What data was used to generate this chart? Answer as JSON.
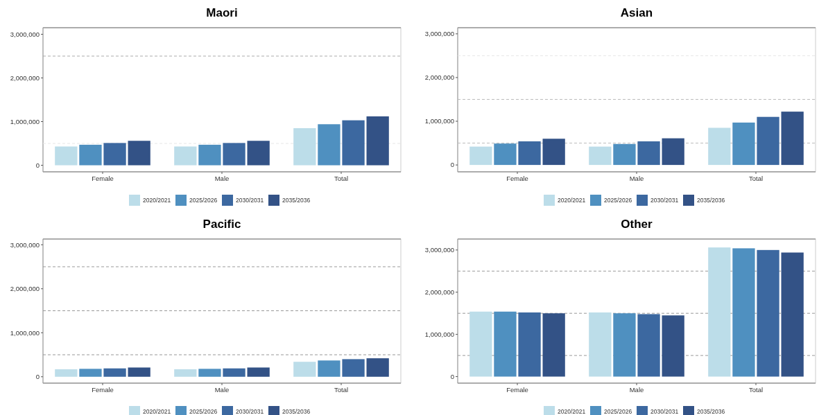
{
  "chart_data": [
    {
      "type": "bar",
      "title": "Maori",
      "categories": [
        "Female",
        "Male",
        "Total"
      ],
      "ylim": [
        -150000,
        3150000
      ],
      "yticks": [
        {
          "value": 0,
          "label": "0"
        },
        {
          "value": 1000000,
          "label": "1,000,000"
        },
        {
          "value": 2000000,
          "label": "2,000,000"
        },
        {
          "value": 3000000,
          "label": "3,000,000"
        }
      ],
      "legend": "bottom",
      "ref_lines": [
        {
          "axis": "y",
          "value": 500000,
          "color": "#e6e6e6",
          "line_style": "dashed"
        },
        {
          "axis": "y",
          "value": 2500000,
          "color": "#aaaaaa",
          "line_style": "dashed"
        }
      ],
      "series": [
        {
          "name": "2020/2021",
          "color": "#bcdde9",
          "values": [
            430000,
            430000,
            850000
          ]
        },
        {
          "name": "2025/2026",
          "color": "#4f90c0",
          "values": [
            470000,
            470000,
            940000
          ]
        },
        {
          "name": "2030/2031",
          "color": "#3c68a0",
          "values": [
            510000,
            510000,
            1030000
          ]
        },
        {
          "name": "2035/2036",
          "color": "#335286",
          "values": [
            560000,
            560000,
            1120000
          ]
        }
      ]
    },
    {
      "type": "bar",
      "title": "Asian",
      "categories": [
        "Female",
        "Male",
        "Total"
      ],
      "ylim": [
        -157000,
        3140000
      ],
      "yticks": [
        {
          "value": 0,
          "label": "0"
        },
        {
          "value": 1000000,
          "label": "1,000,000"
        },
        {
          "value": 2000000,
          "label": "2,000,000"
        },
        {
          "value": 3000000,
          "label": "3,000,000"
        }
      ],
      "legend": "bottom",
      "ref_lines": [
        {
          "axis": "y",
          "value": 500000,
          "color": "#bbbbbb",
          "line_style": "dashed"
        },
        {
          "axis": "y",
          "value": 1500000,
          "color": "#bbbbbb",
          "line_style": "dashed"
        },
        {
          "axis": "y",
          "value": 2500000,
          "color": "#e6e6e6",
          "line_style": "dashed"
        }
      ],
      "series": [
        {
          "name": "2020/2021",
          "color": "#bcdde9",
          "values": [
            420000,
            420000,
            850000
          ]
        },
        {
          "name": "2025/2026",
          "color": "#4f90c0",
          "values": [
            490000,
            480000,
            970000
          ]
        },
        {
          "name": "2030/2031",
          "color": "#3c68a0",
          "values": [
            540000,
            540000,
            1100000
          ]
        },
        {
          "name": "2035/2036",
          "color": "#335286",
          "values": [
            600000,
            610000,
            1220000
          ]
        }
      ]
    },
    {
      "type": "bar",
      "title": "Pacific",
      "categories": [
        "Female",
        "Male",
        "Total"
      ],
      "ylim": [
        -145000,
        3130000
      ],
      "yticks": [
        {
          "value": 0,
          "label": "0"
        },
        {
          "value": 1000000,
          "label": "1,000,000"
        },
        {
          "value": 2000000,
          "label": "2,000,000"
        },
        {
          "value": 3000000,
          "label": "3,000,000"
        }
      ],
      "legend": "bottom",
      "ref_lines": [
        {
          "axis": "y",
          "value": 500000,
          "color": "#999999",
          "line_style": "dashed"
        },
        {
          "axis": "y",
          "value": 1500000,
          "color": "#999999",
          "line_style": "dashed"
        },
        {
          "axis": "y",
          "value": 2500000,
          "color": "#999999",
          "line_style": "dashed"
        }
      ],
      "series": [
        {
          "name": "2020/2021",
          "color": "#bcdde9",
          "values": [
            170000,
            170000,
            340000
          ]
        },
        {
          "name": "2025/2026",
          "color": "#4f90c0",
          "values": [
            180000,
            180000,
            370000
          ]
        },
        {
          "name": "2030/2031",
          "color": "#3c68a0",
          "values": [
            190000,
            190000,
            400000
          ]
        },
        {
          "name": "2035/2036",
          "color": "#335286",
          "values": [
            210000,
            210000,
            420000
          ]
        }
      ]
    },
    {
      "type": "bar",
      "title": "Other",
      "categories": [
        "Female",
        "Male",
        "Total"
      ],
      "ylim": [
        -155000,
        3260000
      ],
      "yticks": [
        {
          "value": 0,
          "label": "0"
        },
        {
          "value": 1000000,
          "label": "1,000,000"
        },
        {
          "value": 2000000,
          "label": "2,000,000"
        },
        {
          "value": 3000000,
          "label": "3,000,000"
        }
      ],
      "legend": "bottom",
      "ref_lines": [
        {
          "axis": "y",
          "value": 500000,
          "color": "#999999",
          "line_style": "dashed"
        },
        {
          "axis": "y",
          "value": 1500000,
          "color": "#999999",
          "line_style": "dashed"
        },
        {
          "axis": "y",
          "value": 2500000,
          "color": "#999999",
          "line_style": "dashed"
        }
      ],
      "series": [
        {
          "name": "2020/2021",
          "color": "#bcdde9",
          "values": [
            1540000,
            1520000,
            3060000
          ]
        },
        {
          "name": "2025/2026",
          "color": "#4f90c0",
          "values": [
            1540000,
            1500000,
            3040000
          ]
        },
        {
          "name": "2030/2031",
          "color": "#3c68a0",
          "values": [
            1520000,
            1480000,
            3000000
          ]
        },
        {
          "name": "2035/2036",
          "color": "#335286",
          "values": [
            1500000,
            1450000,
            2940000
          ]
        }
      ]
    }
  ]
}
